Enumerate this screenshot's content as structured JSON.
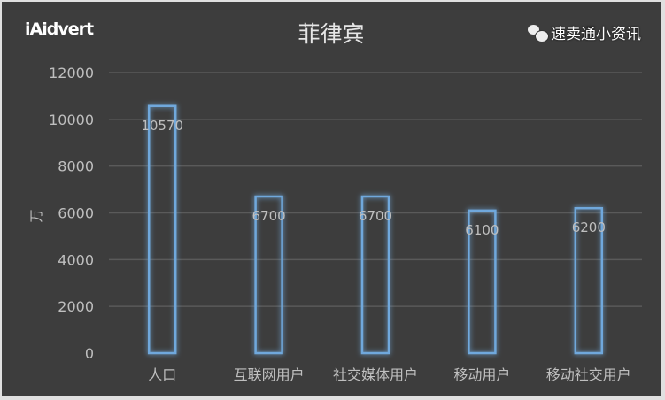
{
  "logo": "iAidvert",
  "watermark": "速卖通小资讯",
  "chart_data": {
    "type": "bar",
    "title": "菲律宾",
    "ylabel": "万",
    "xlabel": "",
    "ylim": [
      0,
      12000
    ],
    "yticks": [
      0,
      2000,
      4000,
      6000,
      8000,
      10000,
      12000
    ],
    "grid": true,
    "categories": [
      "人口",
      "互联网用户",
      "社交媒体用户",
      "移动用户",
      "移动社交用户"
    ],
    "values": [
      10570,
      6700,
      6700,
      6100,
      6200
    ],
    "colors": {
      "background": "#3d3d3d",
      "bar_outline": "#6fa8dc",
      "text": "#bfbfbf",
      "grid": "#5a5a5a"
    }
  }
}
